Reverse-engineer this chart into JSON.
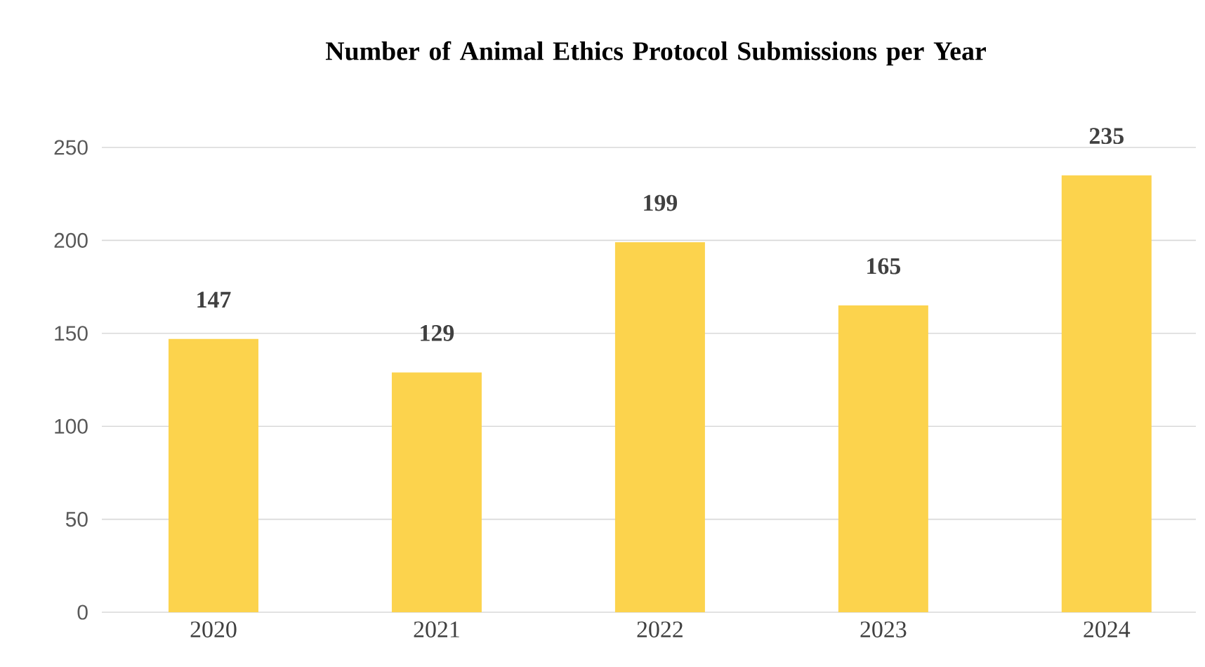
{
  "chart_data": {
    "type": "bar",
    "title": "Number of Animal Ethics Protocol Submissions per Year",
    "categories": [
      "2020",
      "2021",
      "2022",
      "2023",
      "2024"
    ],
    "values": [
      147,
      129,
      199,
      165,
      235
    ],
    "color": "#fcd34d",
    "ylim": [
      0,
      250
    ],
    "yticks": [
      0,
      50,
      100,
      150,
      200,
      250
    ],
    "grid": "y",
    "data_labels": true
  }
}
